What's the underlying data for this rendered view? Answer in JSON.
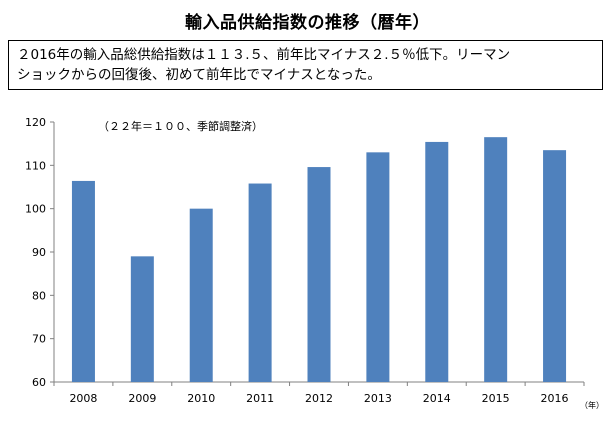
{
  "header": {
    "title": "輸入品供給指数の推移（暦年）"
  },
  "summary": {
    "line1": "２016年の輸入品総供給指数は１１３.５、前年比マイナス２.５％低下。リーマン",
    "line2": "ショックからの回復後、初めて前年比でマイナスとなった。"
  },
  "chart_data": {
    "type": "bar",
    "categories": [
      "2008",
      "2009",
      "2010",
      "2011",
      "2012",
      "2013",
      "2014",
      "2015",
      "2016"
    ],
    "values": [
      106.4,
      89.0,
      100.0,
      105.8,
      109.6,
      113.0,
      115.4,
      116.5,
      113.5
    ],
    "ylim": [
      60,
      120
    ],
    "yticks": [
      60,
      70,
      80,
      90,
      100,
      110,
      120
    ],
    "note": "（２２年＝１００、季節調整済）",
    "x_unit": "（年）",
    "grid": false,
    "bar_color": "#4f81bd"
  }
}
